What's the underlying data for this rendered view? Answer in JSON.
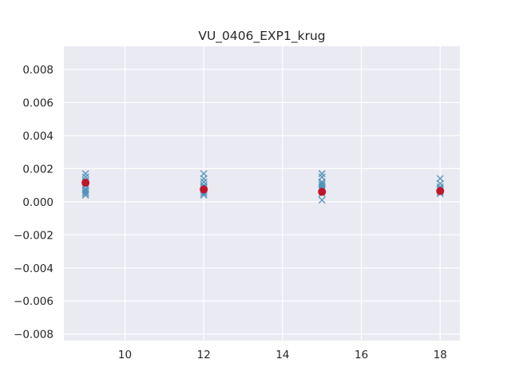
{
  "chart_data": {
    "type": "scatter",
    "title": "VU_0406_EXP1_krug",
    "xlabel": "",
    "ylabel": "",
    "xlim": [
      8.45,
      18.5
    ],
    "ylim": [
      -0.0084,
      0.0094
    ],
    "x_ticks": [
      10,
      12,
      14,
      16,
      18
    ],
    "x_tick_labels": [
      "10",
      "12",
      "14",
      "16",
      "18"
    ],
    "y_ticks": [
      -0.008,
      -0.006,
      -0.004,
      -0.002,
      0.0,
      0.002,
      0.004,
      0.006,
      0.008
    ],
    "y_tick_labels": [
      "−0.008",
      "−0.006",
      "−0.004",
      "−0.002",
      "0.000",
      "0.002",
      "0.004",
      "0.006",
      "0.008"
    ],
    "grid": true,
    "legend": "none",
    "background_color": "#eaeaf2",
    "colors": {
      "samples": "#4c91b8",
      "mean": "#c0152b",
      "grid": "#ffffff"
    },
    "series": [
      {
        "marker": "x",
        "x": [
          9,
          9,
          9,
          9,
          9,
          9,
          9,
          9,
          9,
          9,
          12,
          12,
          12,
          12,
          12,
          12,
          12,
          12,
          12,
          12,
          15,
          15,
          15,
          15,
          15,
          15,
          15,
          15,
          15,
          15,
          18,
          18,
          18,
          18,
          18,
          18,
          18
        ],
        "y": [
          0.0017,
          0.0015,
          0.0013,
          0.0012,
          0.001,
          0.0008,
          0.0007,
          0.0006,
          0.0005,
          0.0004,
          0.0017,
          0.0014,
          0.0012,
          0.001,
          0.0009,
          0.0008,
          0.0007,
          0.0006,
          0.0005,
          0.0004,
          0.0017,
          0.0015,
          0.0012,
          0.0011,
          0.001,
          0.0009,
          0.0008,
          0.0007,
          0.0005,
          0.0001,
          0.0014,
          0.0011,
          0.0009,
          0.0008,
          0.0007,
          0.0006,
          0.0005
        ]
      },
      {
        "marker": "o",
        "x": [
          9,
          12,
          15,
          18
        ],
        "y": [
          0.00115,
          0.00075,
          0.0006,
          0.00065
        ]
      }
    ]
  }
}
